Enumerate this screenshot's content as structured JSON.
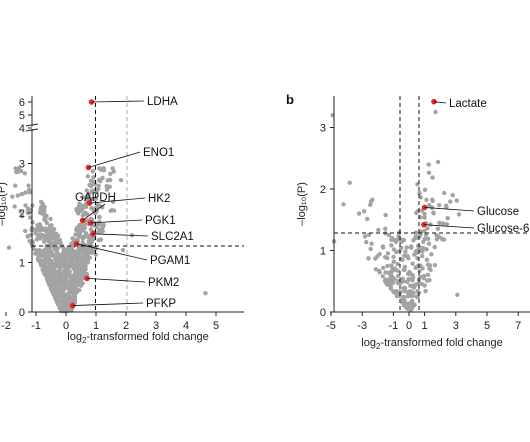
{
  "chart_data": [
    {
      "type": "scatter",
      "panel_label": "",
      "xlabel": "log₂-transformed fold change",
      "ylabel": "–log₁₀(P)",
      "xlim": [
        -3,
        5
      ],
      "ylim": [
        0,
        6.3
      ],
      "axis_break": {
        "between": [
          3.5,
          4
        ]
      },
      "x_ticks": [
        "-2",
        "-1",
        "0",
        "1",
        "2",
        "3",
        "4",
        "5"
      ],
      "y_ticks": [
        "0",
        "1",
        "2",
        "3",
        "4",
        "5",
        "6"
      ],
      "thresholds": {
        "x_dashed": [
          -0.58,
          0.58
        ],
        "y_dashed": 1.3
      },
      "highlight_color": "#e8262b",
      "background_color": "#a3a3a3",
      "highlighted_points": [
        {
          "label": "LDHA",
          "x": 0.85,
          "y": 6.0
        },
        {
          "label": "ENO1",
          "x": 0.75,
          "y": 2.92
        },
        {
          "label": "HK2",
          "x": 0.78,
          "y": 2.2
        },
        {
          "label": "GAPDH",
          "x": 0.55,
          "y": 1.85
        },
        {
          "label": "PGK1",
          "x": 0.82,
          "y": 1.8
        },
        {
          "label": "SLC2A1",
          "x": 0.9,
          "y": 1.58
        },
        {
          "label": "PGAM1",
          "x": 0.35,
          "y": 1.38
        },
        {
          "label": "PKM2",
          "x": 0.7,
          "y": 0.68
        },
        {
          "label": "PFKP",
          "x": 0.22,
          "y": 0.13
        }
      ]
    },
    {
      "type": "scatter",
      "panel_label": "b",
      "xlabel": "log₂-transformed fold change",
      "ylabel": "–log₁₀(P)",
      "xlim": [
        -5.5,
        8
      ],
      "ylim": [
        0,
        3.5
      ],
      "x_ticks": [
        "-5",
        "-3",
        "-1",
        "0",
        "1",
        "3",
        "5",
        "7"
      ],
      "y_ticks": [
        "0",
        "1",
        "2",
        "3"
      ],
      "thresholds": {
        "x_dashed": [
          -0.58,
          0.58
        ],
        "y_dashed": 1.3
      },
      "highlight_color": "#e8262b",
      "background_color": "#a3a3a3",
      "highlighted_points": [
        {
          "label": "Lactate",
          "x": 1.6,
          "y": 3.42
        },
        {
          "label": "Glucose",
          "x": 1.0,
          "y": 1.7
        },
        {
          "label": "Glucose-6",
          "x": 0.95,
          "y": 1.42
        }
      ]
    }
  ]
}
